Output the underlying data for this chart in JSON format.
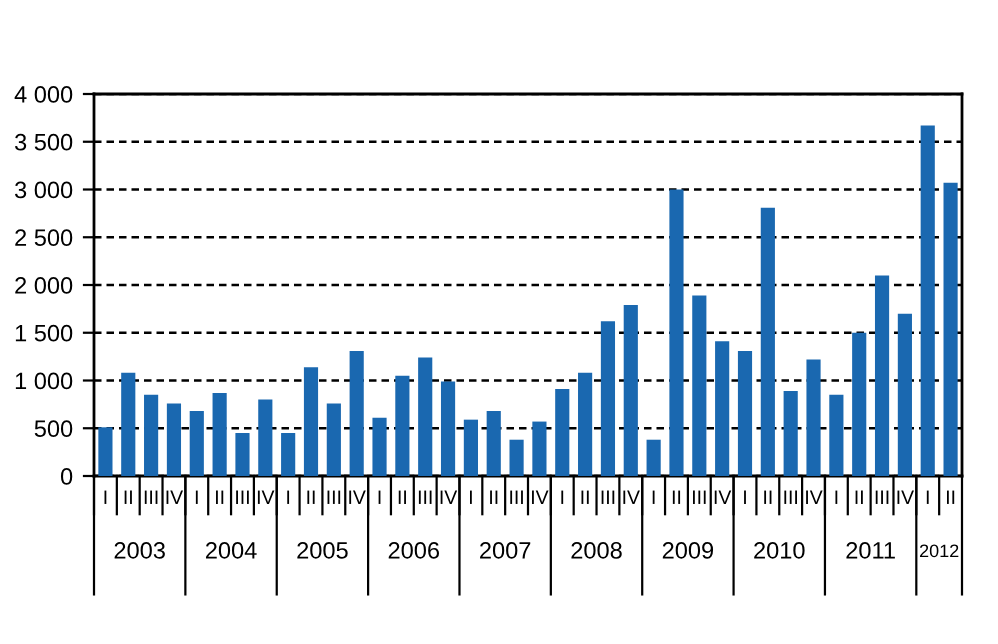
{
  "chart_data": {
    "type": "bar",
    "color": "#1a68b0",
    "categories": [
      "I",
      "II",
      "III",
      "IV",
      "I",
      "II",
      "III",
      "IV",
      "I",
      "II",
      "III",
      "IV",
      "I",
      "II",
      "III",
      "IV",
      "I",
      "II",
      "III",
      "IV",
      "I",
      "II",
      "III",
      "IV",
      "I",
      "II",
      "III",
      "IV",
      "I",
      "II",
      "III",
      "IV",
      "I",
      "II",
      "III",
      "IV",
      "I",
      "II"
    ],
    "values": [
      510,
      1080,
      850,
      760,
      680,
      870,
      450,
      800,
      450,
      1140,
      760,
      1310,
      610,
      1050,
      1240,
      990,
      590,
      680,
      380,
      570,
      910,
      1080,
      1620,
      1790,
      380,
      3000,
      1890,
      1410,
      1310,
      2810,
      890,
      1220,
      850,
      1500,
      2100,
      1700,
      3670,
      3070
    ],
    "annotations": [
      "2003",
      "2004",
      "2005",
      "2006",
      "2007",
      "2008",
      "2009",
      "2010",
      "2011",
      "2012"
    ],
    "ylim": [
      0,
      4000
    ],
    "yticks": [
      0,
      500,
      {
        "value": 1000,
        "label": "1 000"
      },
      {
        "value": 1500,
        "label": "1 500"
      },
      {
        "value": 2000,
        "label": "2 000"
      },
      {
        "value": 2500,
        "label": "2 500"
      },
      {
        "value": 3000,
        "label": "3 000"
      },
      {
        "value": 3500,
        "label": "3 500"
      },
      {
        "value": 4000,
        "label": "4 000"
      }
    ],
    "grid": "y"
  }
}
